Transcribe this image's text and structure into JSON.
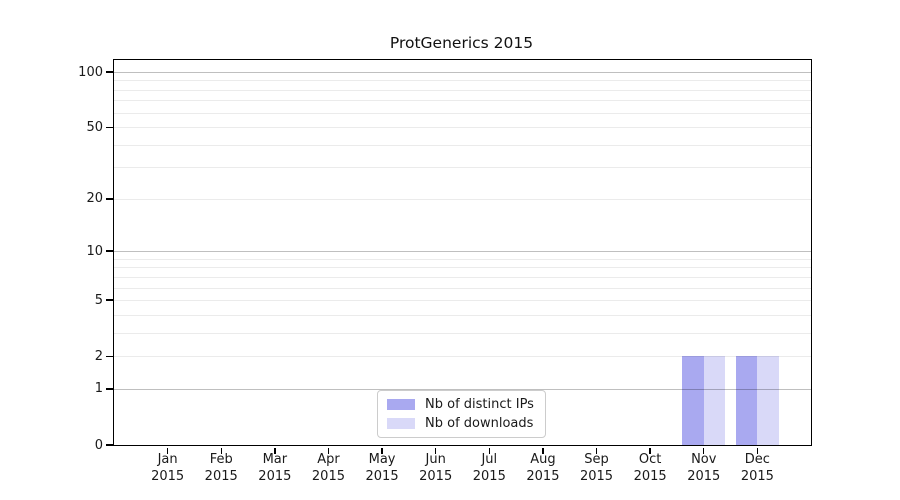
{
  "chart_data": {
    "type": "bar",
    "title": "ProtGenerics 2015",
    "categories": [
      "Jan",
      "Feb",
      "Mar",
      "Apr",
      "May",
      "Jun",
      "Jul",
      "Aug",
      "Sep",
      "Oct",
      "Nov",
      "Dec"
    ],
    "category_year": "2015",
    "series": [
      {
        "name": "Nb of distinct IPs",
        "color": "#a9a9f0",
        "values": [
          0,
          0,
          0,
          0,
          0,
          0,
          0,
          0,
          0,
          0,
          2,
          2
        ]
      },
      {
        "name": "Nb of downloads",
        "color": "#d9d9f8",
        "values": [
          0,
          0,
          0,
          0,
          0,
          0,
          0,
          0,
          0,
          0,
          2,
          2
        ]
      }
    ],
    "xlabel": "",
    "ylabel": "",
    "yscale": "log1p",
    "ylim": [
      0,
      100
    ],
    "yticks": [
      0,
      1,
      2,
      5,
      10,
      20,
      50,
      100
    ],
    "yticks_minor": [
      3,
      4,
      6,
      7,
      8,
      9,
      30,
      40,
      60,
      70,
      80,
      90
    ],
    "decade_ticks": [
      1,
      10,
      100
    ],
    "grid": true,
    "legend_position": "lower center"
  },
  "colors": {
    "background": "#ffffff",
    "spine": "#000000",
    "grid_major": "rgba(0,0,0,0.25)",
    "grid_minor": "rgba(0,0,0,0.08)",
    "legend_border": "#cccccc",
    "text": "#1a1a1a"
  }
}
